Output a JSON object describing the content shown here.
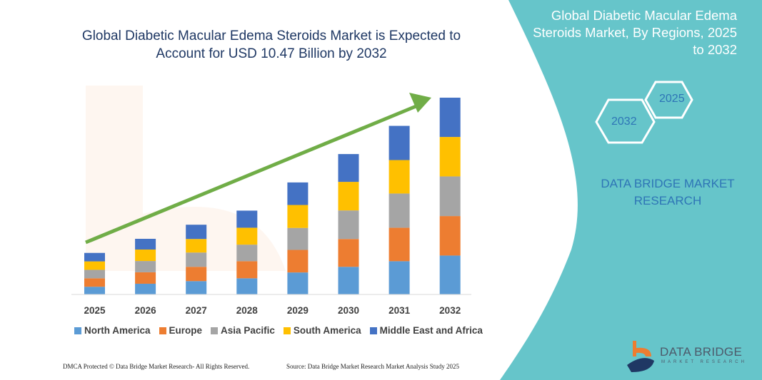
{
  "title": "Global Diabetic Macular Edema Steroids Market is Expected to Account for USD 10.47 Billion by 2032",
  "side_panel": {
    "title": "Global Diabetic Macular Edema Steroids Market, By Regions, 2025 to 2032",
    "hex_start": "2025",
    "hex_end": "2032",
    "brand": "DATA BRIDGE MARKET RESEARCH",
    "logo_name": "DATA BRIDGE",
    "logo_sub": "MARKET RESEARCH",
    "color": "#66c5ca"
  },
  "footer": {
    "left": "DMCA Protected © Data Bridge Market Research- All Rights Reserved.",
    "right": "Source: Data Bridge Market Research Market Analysis Study 2025"
  },
  "chart_data": {
    "type": "bar",
    "stacked": true,
    "categories": [
      "2025",
      "2026",
      "2027",
      "2028",
      "2029",
      "2030",
      "2031",
      "2032"
    ],
    "series": [
      {
        "name": "North America",
        "color": "#5b9bd5",
        "values": [
          0.41,
          0.57,
          0.71,
          0.86,
          1.17,
          1.47,
          1.77,
          2.07
        ]
      },
      {
        "name": "Europe",
        "color": "#ed7d31",
        "values": [
          0.45,
          0.61,
          0.76,
          0.91,
          1.2,
          1.48,
          1.78,
          2.1
        ]
      },
      {
        "name": "Asia Pacific",
        "color": "#a5a5a5",
        "values": [
          0.45,
          0.6,
          0.76,
          0.88,
          1.17,
          1.52,
          1.82,
          2.11
        ]
      },
      {
        "name": "South America",
        "color": "#ffc000",
        "values": [
          0.45,
          0.61,
          0.72,
          0.9,
          1.22,
          1.52,
          1.78,
          2.1
        ]
      },
      {
        "name": "Middle East and Africa",
        "color": "#4472c4",
        "values": [
          0.45,
          0.57,
          0.76,
          0.91,
          1.2,
          1.48,
          1.82,
          2.09
        ]
      }
    ],
    "ylim": [
      0,
      10.47
    ],
    "grid": false,
    "legend": "bottom",
    "trend_arrow_color": "#70ad47"
  }
}
